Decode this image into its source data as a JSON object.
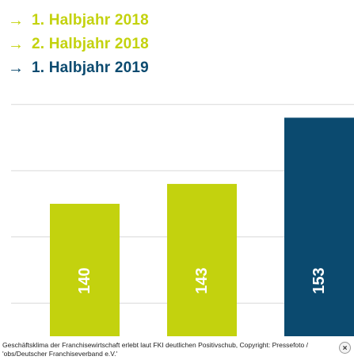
{
  "chart_data": {
    "type": "bar",
    "categories": [
      "1. Halbjahr 2018",
      "2. Halbjahr 2018",
      "1. Halbjahr 2019"
    ],
    "values": [
      140,
      143,
      153
    ],
    "colors": [
      "#c3d20e",
      "#c3d20e",
      "#0b4a6f"
    ],
    "ylim": [
      120,
      157
    ],
    "grid": true,
    "legend_position": "top-left",
    "legend_icon": "arrow-right-icon"
  },
  "caption": "Geschäftsklima der Franchisewirtschaft erlebt laut FKI deutlichen Positivschub, Copyright: Pressefoto / 'obs/Deutscher Franchiseverband e.V.'",
  "close_icon": "close-icon",
  "close_label": "×"
}
